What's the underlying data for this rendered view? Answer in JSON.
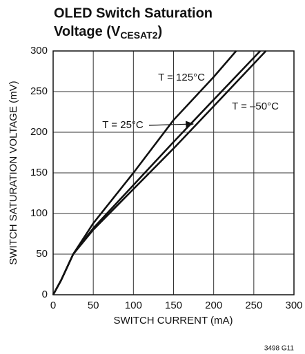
{
  "chart_data": {
    "type": "line",
    "title": {
      "line1": "OLED Switch Saturation",
      "line2": "Voltage (V",
      "subscript": "CESAT2",
      "close": ")"
    },
    "x_label": "SWITCH CURRENT (mA)",
    "y_label": "SWITCH SATURATION VOLTAGE (mV)",
    "footnote": "3498 G11",
    "xlim": [
      0,
      300
    ],
    "xticks": [
      0,
      50,
      100,
      150,
      200,
      250,
      300
    ],
    "ylim": [
      0,
      300
    ],
    "yticks": [
      0,
      50,
      100,
      150,
      200,
      250,
      300
    ],
    "grid": true,
    "series": [
      {
        "name": "T = 125°C",
        "color": "#111111",
        "x": [
          0,
          10,
          25,
          50,
          100,
          150,
          200,
          228
        ],
        "values": [
          0,
          18,
          50,
          88,
          150,
          215,
          268,
          300
        ]
      },
      {
        "name": "T = 25°C",
        "color": "#111111",
        "x": [
          0,
          10,
          25,
          50,
          100,
          150,
          200,
          258
        ],
        "values": [
          0,
          18,
          50,
          82,
          135,
          188,
          240,
          300
        ]
      },
      {
        "name": "T = –50°C",
        "color": "#111111",
        "x": [
          0,
          10,
          25,
          50,
          100,
          150,
          200,
          265
        ],
        "values": [
          0,
          18,
          50,
          80,
          130,
          180,
          232,
          300
        ]
      }
    ]
  }
}
